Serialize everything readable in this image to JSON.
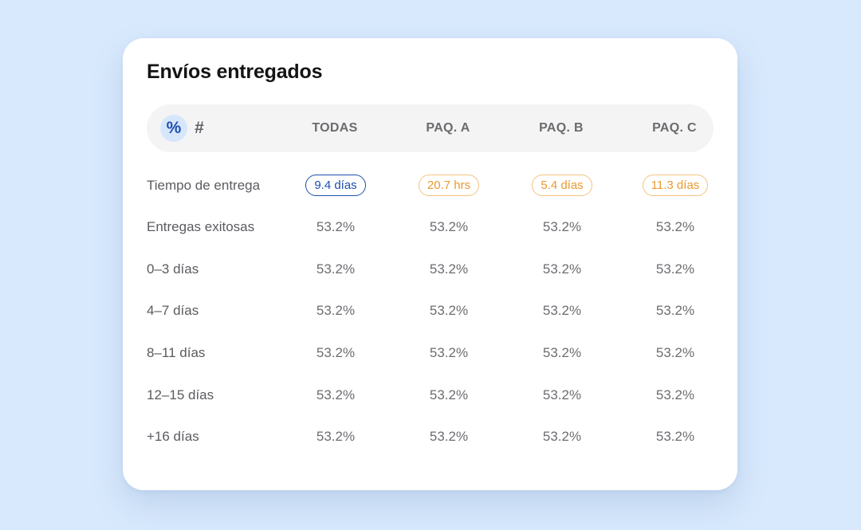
{
  "card": {
    "title": "Envíos entregados"
  },
  "toggle": {
    "percent_symbol": "%",
    "count_symbol": "#",
    "active": "percent"
  },
  "columns": [
    "TODAS",
    "PAQ. A",
    "PAQ. B",
    "PAQ. C"
  ],
  "rows": [
    {
      "label": "Tiempo de entrega",
      "values": [
        "9.4 días",
        "20.7 hrs",
        "5.4 días",
        "11.3 días"
      ],
      "highlight_first": true
    },
    {
      "label": "Entregas exitosas",
      "values": [
        "53.2%",
        "53.2%",
        "53.2%",
        "53.2%"
      ]
    },
    {
      "label": "0–3 días",
      "values": [
        "53.2%",
        "53.2%",
        "53.2%",
        "53.2%"
      ]
    },
    {
      "label": "4–7 días",
      "values": [
        "53.2%",
        "53.2%",
        "53.2%",
        "53.2%"
      ]
    },
    {
      "label": "8–11 días",
      "values": [
        "53.2%",
        "53.2%",
        "53.2%",
        "53.2%"
      ]
    },
    {
      "label": "12–15 días",
      "values": [
        "53.2%",
        "53.2%",
        "53.2%",
        "53.2%"
      ]
    },
    {
      "label": "+16 días",
      "values": [
        "53.2%",
        "53.2%",
        "53.2%",
        "53.2%"
      ]
    }
  ],
  "colors": {
    "background": "#d8e9fd",
    "accent_blue": "#1d4fae",
    "accent_orange": "#e89a30",
    "toggle_active_bg": "#d6e7fb"
  }
}
